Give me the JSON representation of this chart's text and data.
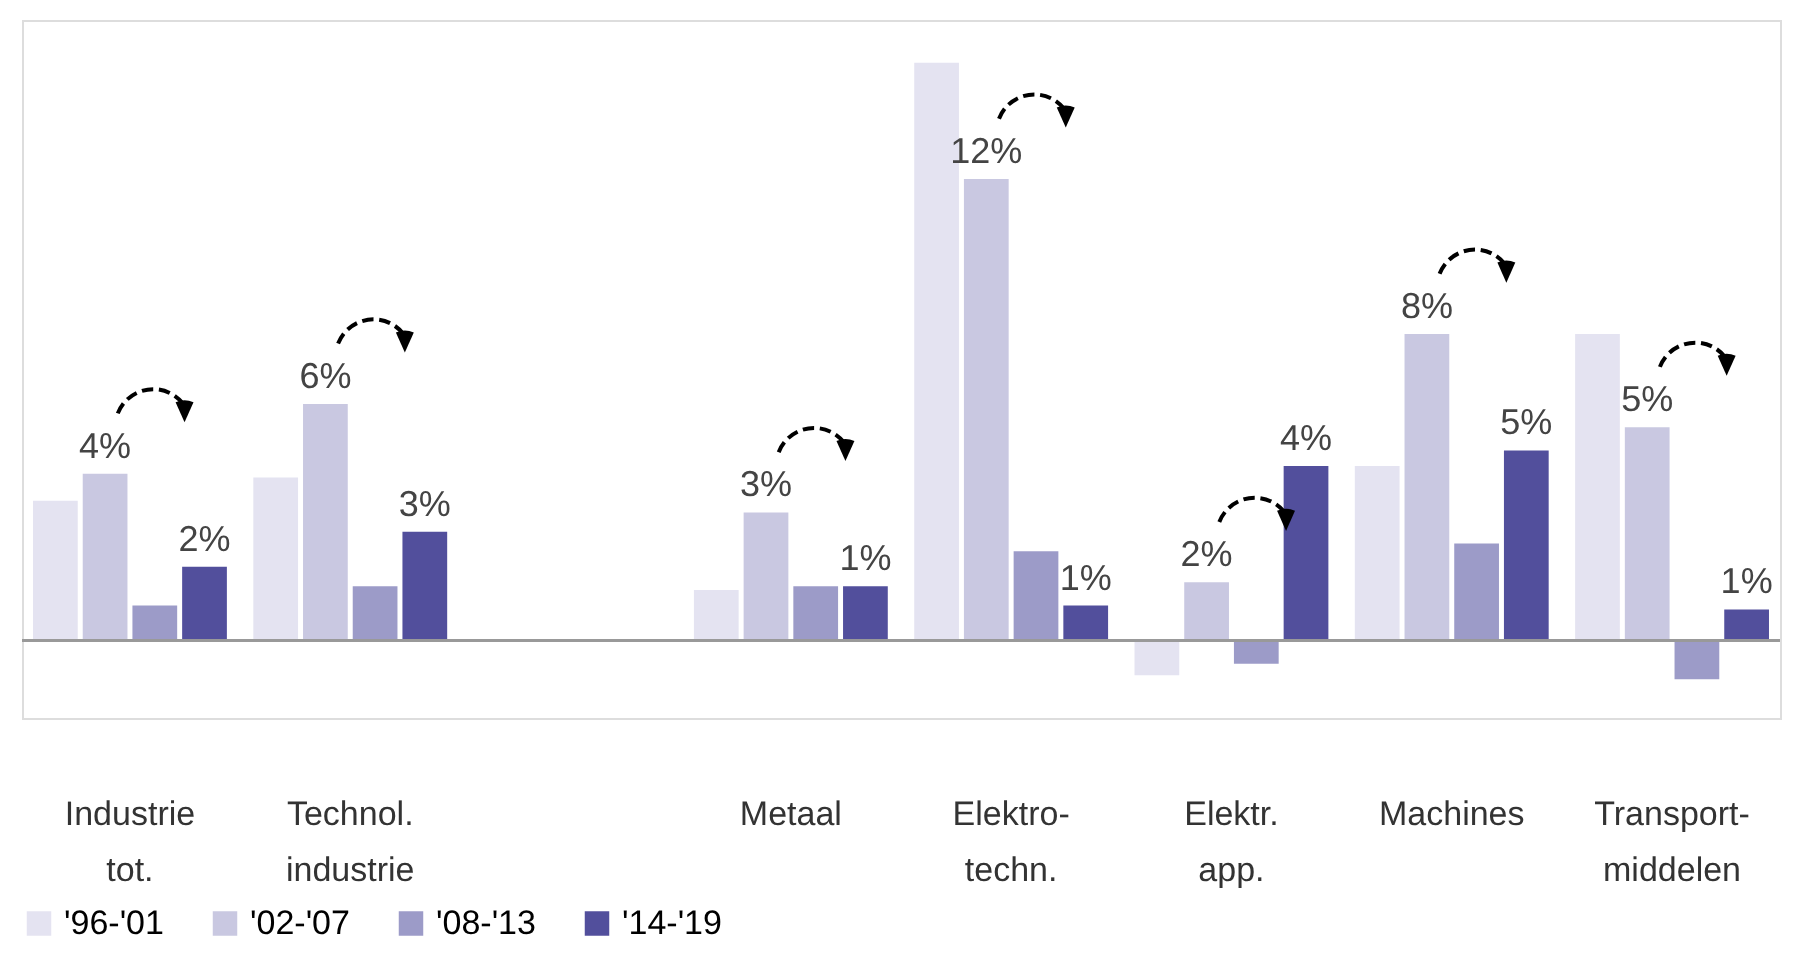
{
  "chart_data": {
    "type": "bar",
    "categories": [
      "Industrie tot.",
      "Technol. industrie",
      null,
      "Metaal",
      "Elektro-techn.",
      "Elektr. app.",
      "Machines",
      "Transport-middelen"
    ],
    "series": [
      {
        "name": "'96-'01",
        "color": "#e4e3f1",
        "values": [
          3.6,
          4.2,
          null,
          1.3,
          14.9,
          -0.9,
          4.5,
          7.9
        ]
      },
      {
        "name": "'02-'07",
        "color": "#c9c8e1",
        "values": [
          4.3,
          6.1,
          null,
          3.3,
          11.9,
          1.5,
          7.9,
          5.5
        ],
        "value_labels": [
          "4%",
          "6%",
          null,
          "3%",
          "12%",
          "2%",
          "8%",
          "5%"
        ]
      },
      {
        "name": "'08-'13",
        "color": "#9c9bc8",
        "values": [
          0.9,
          1.4,
          null,
          1.4,
          2.3,
          -0.6,
          2.5,
          -1.0
        ]
      },
      {
        "name": "'14-'19",
        "color": "#524f9c",
        "values": [
          1.9,
          2.8,
          null,
          1.4,
          0.9,
          4.5,
          4.9,
          0.8
        ],
        "value_labels": [
          "2%",
          "3%",
          null,
          "1%",
          "1%",
          "4%",
          "5%",
          "1%"
        ]
      }
    ],
    "legend": "bottom",
    "tick_labels": "x"
  }
}
